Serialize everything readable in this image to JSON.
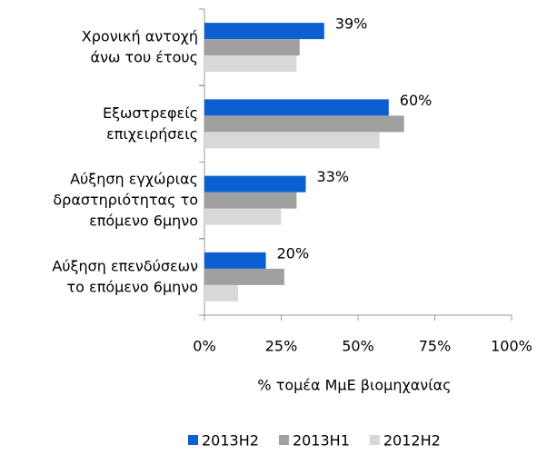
{
  "chart_data": {
    "type": "barh",
    "xlabel": "% τομέα ΜμΕ βιομηχανίας",
    "categories": [
      [
        "Χρονική αντοχή",
        "άνω του έτους"
      ],
      [
        "Εξωστρεφείς",
        "επιχειρήσεις"
      ],
      [
        "Αύξηση εγχώριας",
        "δραστηριότητας το",
        "επόμενο 6μηνο"
      ],
      [
        "Αύξηση επενδύσεων",
        "το επόμενο 6μηνο"
      ]
    ],
    "series": [
      {
        "name": "2013H2",
        "color": "#0a5fd1",
        "values": [
          39,
          60,
          33,
          20
        ],
        "value_labels": [
          "39%",
          "60%",
          "33%",
          "20%"
        ]
      },
      {
        "name": "2013H1",
        "color": "#a0a0a0",
        "values": [
          31,
          65,
          30,
          26
        ]
      },
      {
        "name": "2012H2",
        "color": "#d9d9d9",
        "values": [
          30,
          57,
          25,
          11
        ]
      }
    ],
    "xlim": [
      0,
      100
    ],
    "xticks": [
      {
        "value": 0,
        "label": "0%"
      },
      {
        "value": 25,
        "label": "25%"
      },
      {
        "value": 50,
        "label": "50%"
      },
      {
        "value": 75,
        "label": "75%"
      },
      {
        "value": 100,
        "label": "100%"
      }
    ],
    "legend": "bottom"
  }
}
